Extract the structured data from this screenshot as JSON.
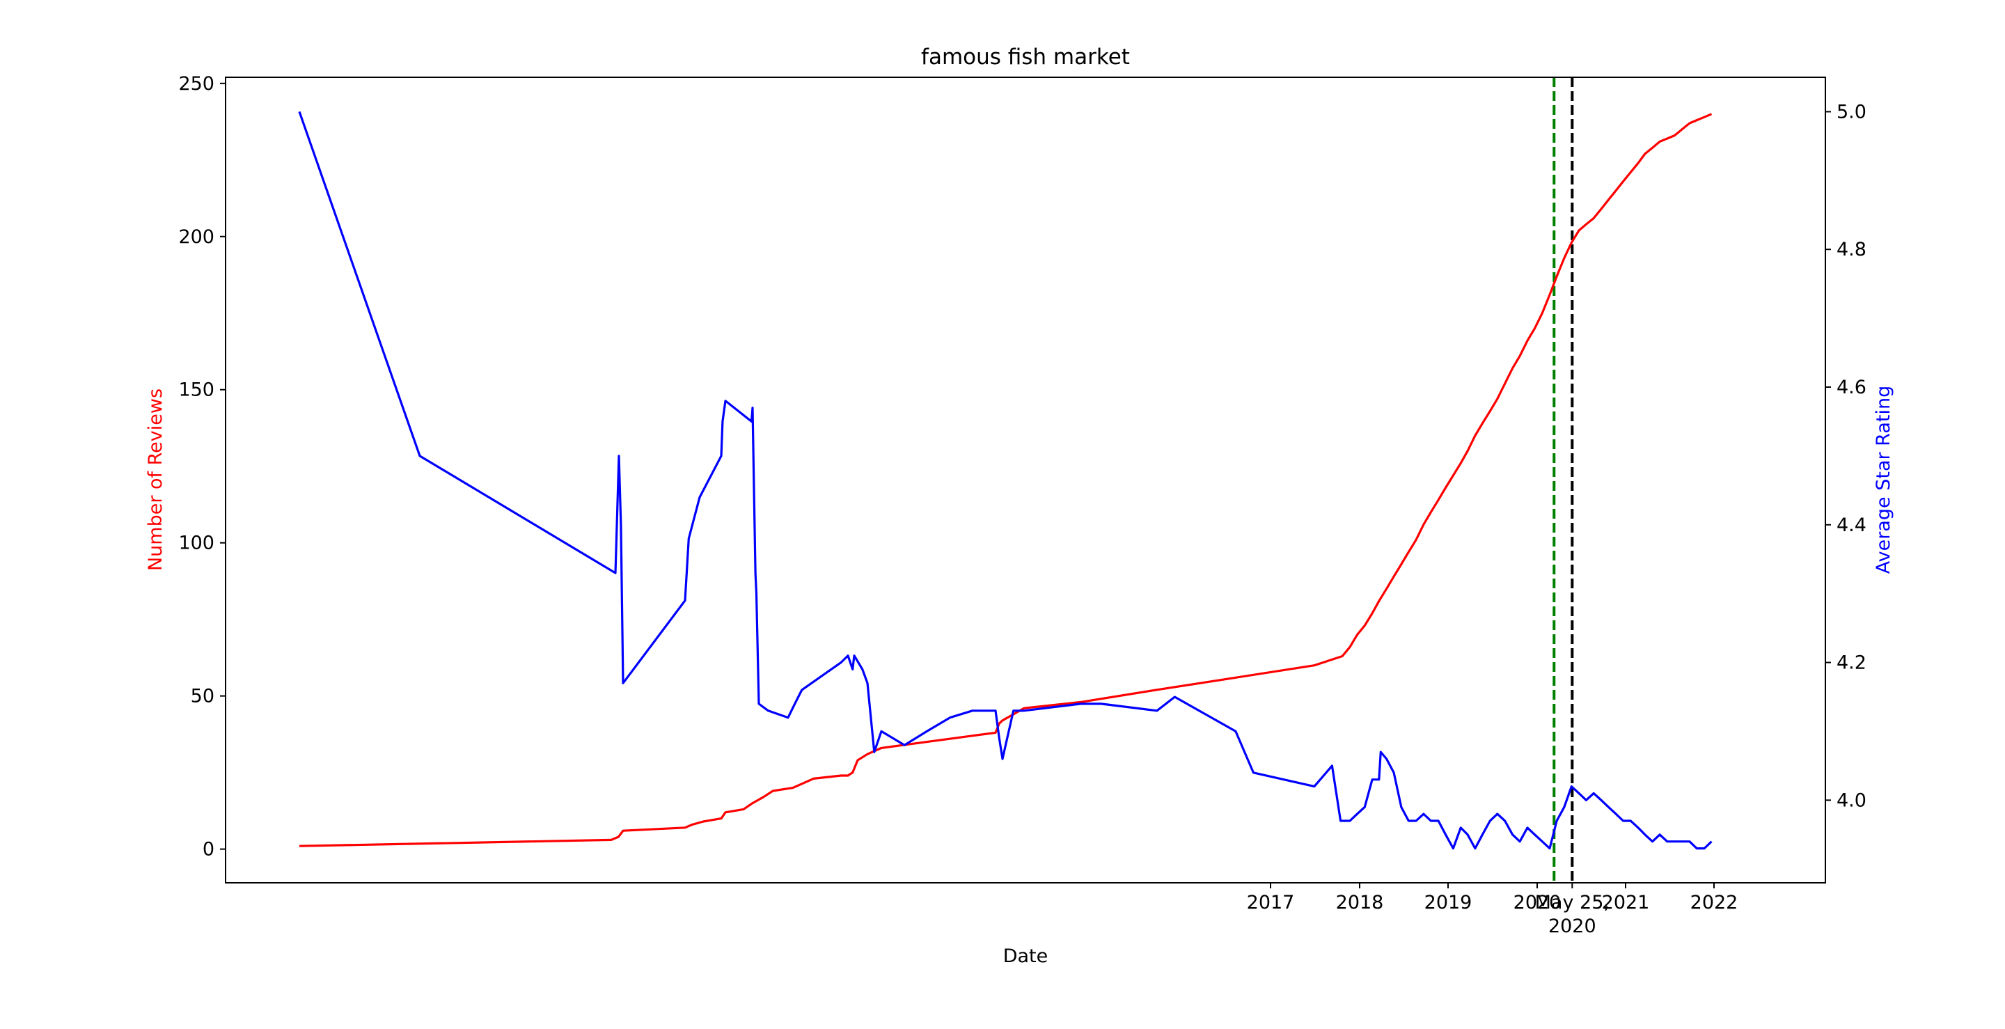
{
  "chart_data": {
    "type": "line",
    "title": "famous fish market",
    "xlabel": "Date",
    "ylabel_left": "Number of Reviews",
    "ylabel_right": "Average Star Rating",
    "x_tick_labels": [
      {
        "x": "2017-01-01",
        "label": "2017"
      },
      {
        "x": "2018-01-01",
        "label": "2018"
      },
      {
        "x": "2019-01-01",
        "label": "2019"
      },
      {
        "x": "2020-01-01",
        "label": "2020"
      },
      {
        "x": "2020-05-25",
        "label": "May 25,\n2020"
      },
      {
        "x": "2021-01-01",
        "label": "2021"
      },
      {
        "x": "2022-01-01",
        "label": "2022"
      }
    ],
    "ylim_left": [
      -11,
      252
    ],
    "yticks_left": [
      0,
      50,
      100,
      150,
      200,
      250
    ],
    "ylim_right": [
      3.88,
      5.05
    ],
    "yticks_right": [
      4.0,
      4.2,
      4.4,
      4.6,
      4.8,
      5.0
    ],
    "yticks_right_labels": [
      "4.0",
      "4.2",
      "4.4",
      "4.6",
      "4.8",
      "5.0"
    ],
    "vlines": [
      {
        "x": "2020-03-11",
        "color": "#008000",
        "style": "dashed"
      },
      {
        "x": "2020-05-25",
        "color": "#000000",
        "style": "dashed"
      }
    ],
    "colors": {
      "reviews": "#ff0000",
      "rating": "#0000ff",
      "axis": "#000000"
    },
    "series": [
      {
        "name": "Number of Reviews",
        "axis": "left",
        "color": "#ff0000",
        "points": [
          [
            "2008-10-29",
            1
          ],
          [
            "2012-05-29",
            3
          ],
          [
            "2012-06-29",
            4
          ],
          [
            "2012-07-20",
            6
          ],
          [
            "2013-05-22",
            7
          ],
          [
            "2013-07-22",
            8
          ],
          [
            "2013-10-22",
            9
          ],
          [
            "2014-03-22",
            10
          ],
          [
            "2014-04-22",
            12
          ],
          [
            "2014-08-22",
            13
          ],
          [
            "2014-10-22",
            15
          ],
          [
            "2014-12-22",
            17
          ],
          [
            "2015-02-22",
            19
          ],
          [
            "2015-06-22",
            20
          ],
          [
            "2015-09-22",
            23
          ],
          [
            "2016-01-22",
            24
          ],
          [
            "2016-02-22",
            24
          ],
          [
            "2016-03-22",
            25
          ],
          [
            "2016-04-22",
            29
          ],
          [
            "2016-06-22",
            31
          ],
          [
            "2016-08-22",
            33
          ],
          [
            "2016-10-22",
            35
          ],
          [
            "2016-12-22",
            37
          ],
          [
            "2017-01-22",
            38
          ],
          [
            "2017-02-22",
            41
          ],
          [
            "2017-03-22",
            42
          ],
          [
            "2017-04-22",
            44
          ],
          [
            "2017-05-22",
            46
          ],
          [
            "2017-06-22",
            48
          ],
          [
            "2017-07-22",
            52
          ],
          [
            "2017-08-22",
            56
          ],
          [
            "2017-09-22",
            60
          ],
          [
            "2017-10-22",
            63
          ],
          [
            "2017-11-22",
            66
          ],
          [
            "2017-12-22",
            70
          ],
          [
            "2018-01-22",
            73
          ],
          [
            "2018-02-22",
            77
          ],
          [
            "2018-03-22",
            81
          ],
          [
            "2018-04-22",
            85
          ],
          [
            "2018-05-22",
            89
          ],
          [
            "2018-06-22",
            93
          ],
          [
            "2018-07-22",
            97
          ],
          [
            "2018-08-22",
            101
          ],
          [
            "2018-09-22",
            106
          ],
          [
            "2018-10-22",
            110
          ],
          [
            "2018-11-22",
            114
          ],
          [
            "2018-12-22",
            118
          ],
          [
            "2019-01-22",
            122
          ],
          [
            "2019-02-22",
            126
          ],
          [
            "2019-03-22",
            130
          ],
          [
            "2019-04-22",
            135
          ],
          [
            "2019-05-22",
            139
          ],
          [
            "2019-06-22",
            143
          ],
          [
            "2019-07-22",
            147
          ],
          [
            "2019-08-22",
            152
          ],
          [
            "2019-09-22",
            157
          ],
          [
            "2019-10-22",
            161
          ],
          [
            "2019-11-22",
            166
          ],
          [
            "2019-12-22",
            170
          ],
          [
            "2020-01-22",
            175
          ],
          [
            "2020-02-22",
            181
          ],
          [
            "2020-03-22",
            187
          ],
          [
            "2020-04-22",
            193
          ],
          [
            "2020-05-22",
            198
          ],
          [
            "2020-06-22",
            202
          ],
          [
            "2020-07-22",
            204
          ],
          [
            "2020-08-22",
            206
          ],
          [
            "2020-09-22",
            209
          ],
          [
            "2020-10-22",
            212
          ],
          [
            "2020-11-22",
            215
          ],
          [
            "2020-12-22",
            218
          ],
          [
            "2021-01-22",
            221
          ],
          [
            "2021-02-22",
            224
          ],
          [
            "2021-03-22",
            227
          ],
          [
            "2021-04-22",
            229
          ],
          [
            "2021-05-22",
            231
          ],
          [
            "2021-06-22",
            232
          ],
          [
            "2021-07-22",
            233
          ],
          [
            "2021-08-22",
            235
          ],
          [
            "2021-09-22",
            237
          ],
          [
            "2021-10-22",
            238
          ],
          [
            "2021-11-22",
            239
          ],
          [
            "2021-12-22",
            240
          ]
        ]
      },
      {
        "name": "Average Star Rating",
        "axis": "right",
        "color": "#0000ff",
        "points": [
          [
            "2008-10-29",
            5.0
          ],
          [
            "2010-04-29",
            4.5
          ],
          [
            "2012-06-15",
            4.33
          ],
          [
            "2012-07-01",
            4.5
          ],
          [
            "2012-07-10",
            4.4
          ],
          [
            "2012-07-20",
            4.17
          ],
          [
            "2013-05-22",
            4.29
          ],
          [
            "2013-06-22",
            4.38
          ],
          [
            "2013-09-22",
            4.44
          ],
          [
            "2014-03-22",
            4.5
          ],
          [
            "2014-04-01",
            4.55
          ],
          [
            "2014-04-22",
            4.58
          ],
          [
            "2014-10-15",
            4.55
          ],
          [
            "2014-10-22",
            4.57
          ],
          [
            "2014-11-05",
            4.33
          ],
          [
            "2014-11-10",
            4.3
          ],
          [
            "2014-11-22",
            4.14
          ],
          [
            "2015-01-22",
            4.13
          ],
          [
            "2015-06-01",
            4.12
          ],
          [
            "2015-07-01",
            4.14
          ],
          [
            "2015-08-01",
            4.16
          ],
          [
            "2016-01-22",
            4.2
          ],
          [
            "2016-02-22",
            4.21
          ],
          [
            "2016-03-22",
            4.19
          ],
          [
            "2016-04-01",
            4.21
          ],
          [
            "2016-05-22",
            4.19
          ],
          [
            "2016-06-22",
            4.17
          ],
          [
            "2016-07-22",
            4.07
          ],
          [
            "2016-08-22",
            4.1
          ],
          [
            "2016-09-22",
            4.08
          ],
          [
            "2016-10-22",
            4.1
          ],
          [
            "2016-11-22",
            4.12
          ],
          [
            "2016-12-22",
            4.13
          ],
          [
            "2017-01-22",
            4.13
          ],
          [
            "2017-02-22",
            4.09
          ],
          [
            "2017-03-22",
            4.06
          ],
          [
            "2017-04-22",
            4.13
          ],
          [
            "2017-05-22",
            4.13
          ],
          [
            "2017-06-22",
            4.14
          ],
          [
            "2017-06-30",
            4.14
          ],
          [
            "2017-07-22",
            4.13
          ],
          [
            "2017-07-29",
            4.15
          ],
          [
            "2017-08-22",
            4.1
          ],
          [
            "2017-08-29",
            4.04
          ],
          [
            "2017-09-22",
            4.02
          ],
          [
            "2017-09-29",
            4.05
          ],
          [
            "2017-10-15",
            3.97
          ],
          [
            "2017-11-22",
            3.97
          ],
          [
            "2017-12-22",
            3.98
          ],
          [
            "2018-01-22",
            3.99
          ],
          [
            "2018-02-22",
            4.03
          ],
          [
            "2018-03-22",
            4.03
          ],
          [
            "2018-03-29",
            4.07
          ],
          [
            "2018-04-22",
            4.06
          ],
          [
            "2018-05-22",
            4.04
          ],
          [
            "2018-06-22",
            3.99
          ],
          [
            "2018-07-22",
            3.97
          ],
          [
            "2018-08-22",
            3.97
          ],
          [
            "2018-09-22",
            3.98
          ],
          [
            "2018-10-22",
            3.97
          ],
          [
            "2018-11-22",
            3.97
          ],
          [
            "2018-12-22",
            3.95
          ],
          [
            "2019-01-22",
            3.93
          ],
          [
            "2019-02-22",
            3.96
          ],
          [
            "2019-03-22",
            3.95
          ],
          [
            "2019-04-22",
            3.93
          ],
          [
            "2019-05-22",
            3.95
          ],
          [
            "2019-06-22",
            3.97
          ],
          [
            "2019-07-22",
            3.98
          ],
          [
            "2019-08-22",
            3.97
          ],
          [
            "2019-09-22",
            3.95
          ],
          [
            "2019-10-22",
            3.94
          ],
          [
            "2019-11-22",
            3.96
          ],
          [
            "2019-12-22",
            3.95
          ],
          [
            "2020-01-22",
            3.94
          ],
          [
            "2020-02-22",
            3.93
          ],
          [
            "2020-03-22",
            3.97
          ],
          [
            "2020-04-22",
            3.99
          ],
          [
            "2020-05-22",
            4.02
          ],
          [
            "2020-06-22",
            4.01
          ],
          [
            "2020-07-22",
            4.0
          ],
          [
            "2020-08-22",
            4.01
          ],
          [
            "2020-09-22",
            4.0
          ],
          [
            "2020-10-22",
            3.99
          ],
          [
            "2020-11-22",
            3.98
          ],
          [
            "2020-12-22",
            3.97
          ],
          [
            "2021-01-22",
            3.97
          ],
          [
            "2021-02-22",
            3.96
          ],
          [
            "2021-03-22",
            3.95
          ],
          [
            "2021-04-22",
            3.94
          ],
          [
            "2021-05-22",
            3.95
          ],
          [
            "2021-06-22",
            3.94
          ],
          [
            "2021-07-22",
            3.94
          ],
          [
            "2021-08-22",
            3.94
          ],
          [
            "2021-09-22",
            3.94
          ],
          [
            "2021-10-22",
            3.93
          ],
          [
            "2021-11-22",
            3.93
          ],
          [
            "2021-12-22",
            3.94
          ]
        ]
      }
    ]
  }
}
